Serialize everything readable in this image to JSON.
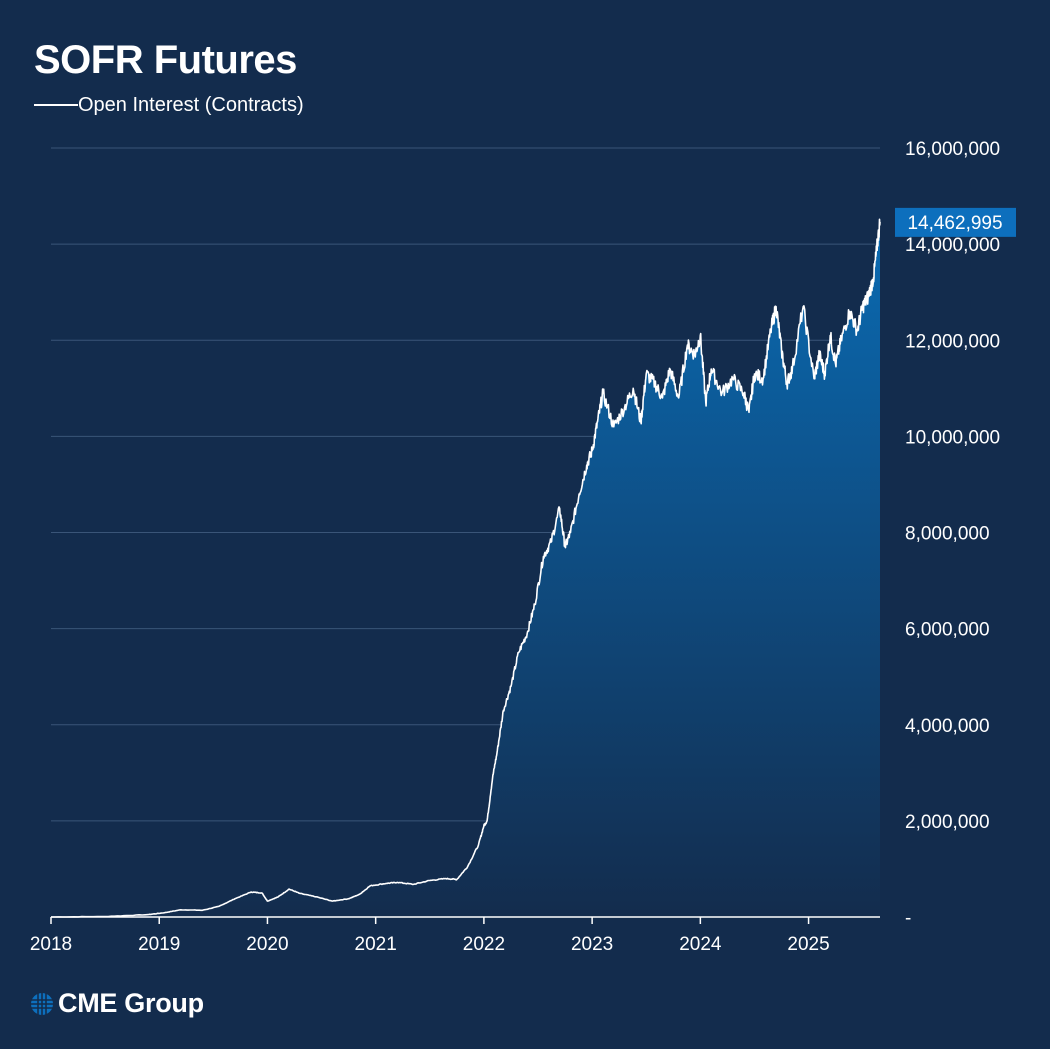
{
  "title": "SOFR Futures",
  "legend_label": "Open Interest (Contracts)",
  "logo_text": "CME Group",
  "colors": {
    "background": "#132c4d",
    "line": "#ffffff",
    "area_top": "#0a6bb3",
    "area_bottom": "#132c4d",
    "gridline": "#3a5578",
    "last_value_badge": "#0d6fbd"
  },
  "icons": {
    "logo": "globe-icon"
  },
  "chart_data": {
    "type": "area",
    "title": "SOFR Futures",
    "xlabel": "",
    "ylabel": "",
    "x_ticks": [
      "2018",
      "2019",
      "2020",
      "2021",
      "2022",
      "2023",
      "2024",
      "2025"
    ],
    "y_ticks": [
      "-",
      "2,000,000",
      "4,000,000",
      "6,000,000",
      "8,000,000",
      "10,000,000",
      "12,000,000",
      "14,000,000",
      "16,000,000"
    ],
    "ylim": [
      0,
      16000000
    ],
    "xlim": [
      2018.0,
      2025.66
    ],
    "grid": true,
    "y_axis_position": "right",
    "last_value_label": "14,462,995",
    "series": [
      {
        "name": "Open Interest (Contracts)",
        "x": [
          2018.0,
          2018.5,
          2018.9,
          2019.05,
          2019.2,
          2019.4,
          2019.55,
          2019.7,
          2019.85,
          2019.95,
          2020.0,
          2020.1,
          2020.2,
          2020.3,
          2020.45,
          2020.6,
          2020.75,
          2020.85,
          2020.95,
          2021.1,
          2021.2,
          2021.35,
          2021.5,
          2021.65,
          2021.75,
          2021.85,
          2021.95,
          2022.0,
          2022.03,
          2022.08,
          2022.12,
          2022.18,
          2022.25,
          2022.32,
          2022.4,
          2022.47,
          2022.55,
          2022.62,
          2022.7,
          2022.75,
          2022.8,
          2022.88,
          2022.95,
          2023.0,
          2023.05,
          2023.1,
          2023.2,
          2023.3,
          2023.38,
          2023.45,
          2023.5,
          2023.58,
          2023.65,
          2023.72,
          2023.8,
          2023.88,
          2023.95,
          2024.0,
          2024.05,
          2024.1,
          2024.2,
          2024.3,
          2024.4,
          2024.45,
          2024.5,
          2024.58,
          2024.65,
          2024.7,
          2024.75,
          2024.8,
          2024.85,
          2024.95,
          2025.05,
          2025.1,
          2025.15,
          2025.2,
          2025.25,
          2025.3,
          2025.38,
          2025.45,
          2025.5,
          2025.55,
          2025.6,
          2025.63,
          2025.66
        ],
        "values": [
          0,
          10000,
          50000,
          90000,
          150000,
          140000,
          220000,
          380000,
          520000,
          500000,
          330000,
          420000,
          580000,
          490000,
          420000,
          330000,
          380000,
          470000,
          650000,
          700000,
          720000,
          680000,
          760000,
          800000,
          780000,
          1050000,
          1500000,
          1900000,
          2000000,
          2900000,
          3400000,
          4300000,
          4800000,
          5500000,
          5900000,
          6500000,
          7500000,
          7800000,
          8500000,
          7700000,
          8000000,
          8800000,
          9400000,
          9700000,
          10300000,
          10900000,
          10200000,
          10600000,
          11000000,
          10300000,
          11300000,
          11100000,
          10800000,
          11400000,
          10800000,
          11900000,
          11700000,
          12100000,
          10700000,
          11400000,
          10900000,
          11200000,
          10900000,
          10500000,
          11300000,
          11200000,
          12200000,
          12700000,
          11800000,
          11100000,
          11400000,
          12700000,
          11200000,
          11700000,
          11300000,
          12100000,
          11500000,
          12000000,
          12600000,
          12200000,
          12700000,
          12900000,
          13300000,
          13900000,
          14462995
        ]
      }
    ]
  }
}
